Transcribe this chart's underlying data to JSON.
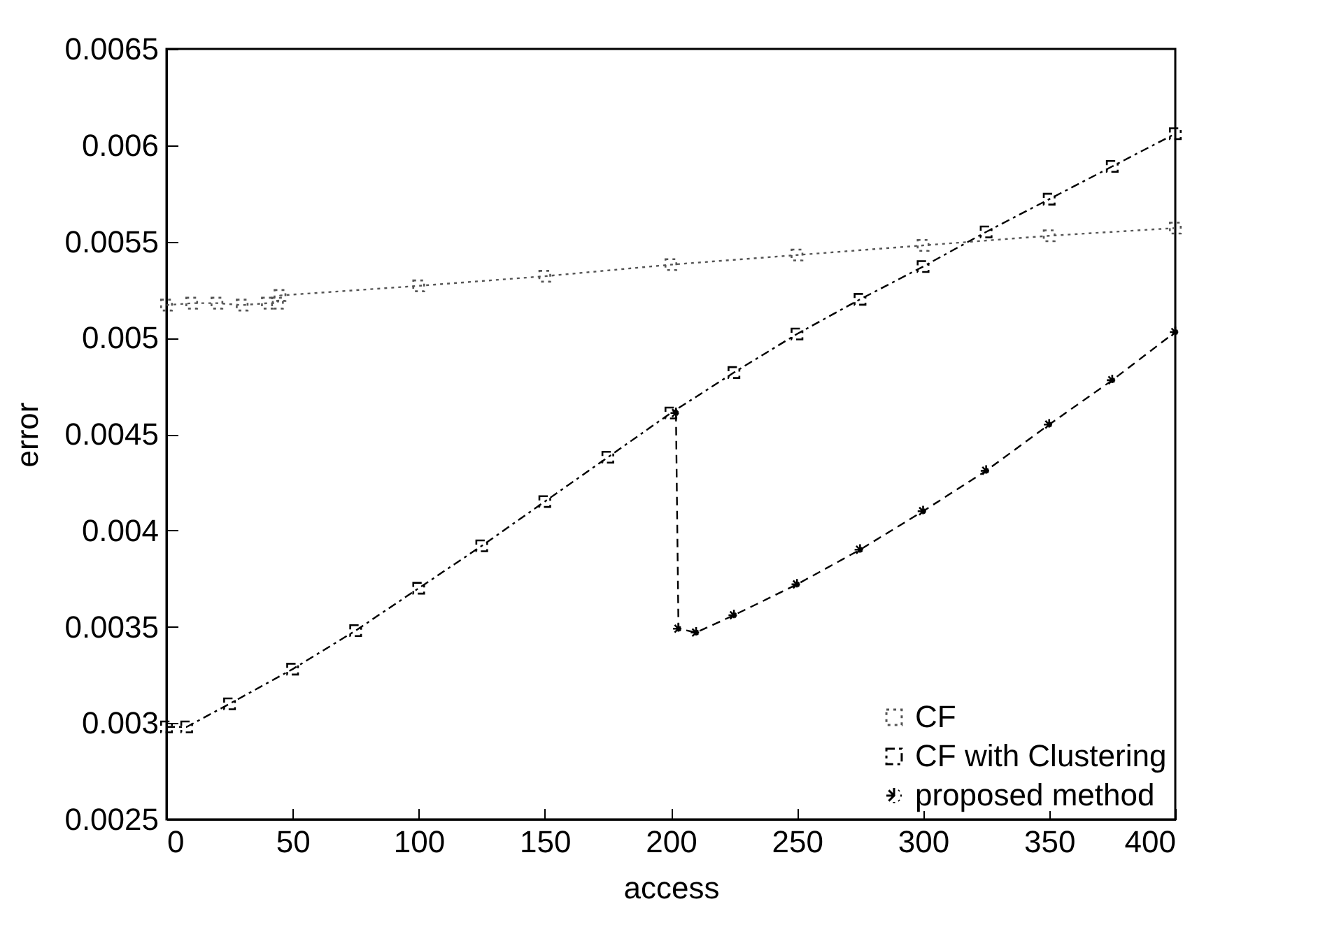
{
  "chart_data": {
    "type": "line",
    "xlabel": "access",
    "ylabel": "error",
    "xlim": [
      0,
      400
    ],
    "ylim": [
      0.0025,
      0.0065
    ],
    "xticks": [
      0,
      50,
      100,
      150,
      200,
      250,
      300,
      350,
      400
    ],
    "yticks": [
      0.0025,
      0.003,
      0.0035,
      0.004,
      0.0045,
      0.005,
      0.0055,
      0.006,
      0.0065
    ],
    "legend": "bottom right",
    "grid": false,
    "series": [
      {
        "name": "CF",
        "color": "#555555",
        "marker": "square",
        "line_style": "dotted",
        "x": [
          0,
          10,
          20,
          30,
          40,
          44,
          45,
          100,
          150,
          200,
          250,
          300,
          350,
          400
        ],
        "values": [
          0.00517,
          0.00518,
          0.00518,
          0.00517,
          0.00518,
          0.00518,
          0.00522,
          0.00527,
          0.00532,
          0.00538,
          0.00543,
          0.00548,
          0.00553,
          0.00557
        ]
      },
      {
        "name": "CF with Clustering",
        "color": "#000000",
        "marker": "square",
        "line_style": "dashdot",
        "x": [
          0,
          8,
          25,
          50,
          75,
          100,
          125,
          150,
          175,
          200,
          225,
          250,
          275,
          300,
          325,
          350,
          375,
          400
        ],
        "values": [
          0.00298,
          0.00298,
          0.0031,
          0.00328,
          0.00348,
          0.0037,
          0.00392,
          0.00415,
          0.00438,
          0.00461,
          0.00482,
          0.00502,
          0.0052,
          0.00537,
          0.00555,
          0.00572,
          0.00589,
          0.00606
        ]
      },
      {
        "name": "proposed method",
        "color": "#000000",
        "marker": "cross",
        "line_style": "dashed",
        "x": [
          202,
          203,
          210,
          225,
          250,
          275,
          300,
          325,
          350,
          375,
          400
        ],
        "values": [
          0.00461,
          0.00349,
          0.00347,
          0.00356,
          0.00372,
          0.0039,
          0.0041,
          0.00431,
          0.00455,
          0.00478,
          0.00503
        ]
      }
    ]
  }
}
